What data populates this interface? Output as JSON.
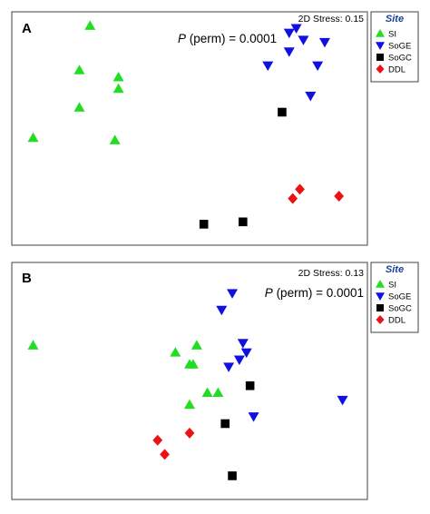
{
  "chart_data": [
    {
      "type": "scatter",
      "panel_label": "A",
      "stress_label": "2D Stress: 0.15",
      "perm_italic": "P",
      "perm_rest": " (perm) = 0.0001",
      "xlim": [
        0,
        100
      ],
      "ylim": [
        0,
        100
      ],
      "grid": false,
      "legend_title": "Site",
      "legend_position": "right",
      "series": [
        {
          "name": "SI",
          "marker": "triangle-up",
          "color": "#22dd22",
          "x": [
            22,
            19,
            30,
            30,
            19,
            6,
            29
          ],
          "y": [
            94,
            75,
            72,
            67,
            59,
            46,
            45
          ]
        },
        {
          "name": "SoGE",
          "marker": "triangle-down",
          "color": "#1010e0",
          "x": [
            80,
            78,
            82,
            88,
            78,
            86,
            72,
            84
          ],
          "y": [
            93,
            91,
            88,
            87,
            83,
            77,
            77,
            64
          ]
        },
        {
          "name": "SoGC",
          "marker": "square",
          "color": "#000000",
          "x": [
            76,
            54,
            65
          ],
          "y": [
            57,
            9,
            10
          ]
        },
        {
          "name": "DDL",
          "marker": "diamond",
          "color": "#ee1111",
          "x": [
            81,
            79,
            92
          ],
          "y": [
            24,
            20,
            21
          ]
        }
      ]
    },
    {
      "type": "scatter",
      "panel_label": "B",
      "stress_label": "2D Stress: 0.13",
      "perm_italic": "P",
      "perm_rest": " (perm) = 0.0001",
      "xlim": [
        0,
        100
      ],
      "ylim": [
        0,
        100
      ],
      "grid": false,
      "legend_title": "Site",
      "legend_position": "right",
      "series": [
        {
          "name": "SI",
          "marker": "triangle-up",
          "color": "#22dd22",
          "x": [
            6,
            52,
            46,
            51,
            50,
            58,
            55,
            50
          ],
          "y": [
            65,
            65,
            62,
            57,
            57,
            45,
            45,
            40
          ]
        },
        {
          "name": "SoGE",
          "marker": "triangle-down",
          "color": "#1010e0",
          "x": [
            62,
            59,
            65,
            66,
            64,
            61,
            68,
            93
          ],
          "y": [
            87,
            80,
            66,
            62,
            59,
            56,
            35,
            42
          ]
        },
        {
          "name": "SoGC",
          "marker": "square",
          "color": "#000000",
          "x": [
            67,
            60,
            62
          ],
          "y": [
            48,
            32,
            10
          ]
        },
        {
          "name": "DDL",
          "marker": "diamond",
          "color": "#ee1111",
          "x": [
            50,
            41,
            43
          ],
          "y": [
            28,
            25,
            19
          ]
        }
      ]
    }
  ]
}
